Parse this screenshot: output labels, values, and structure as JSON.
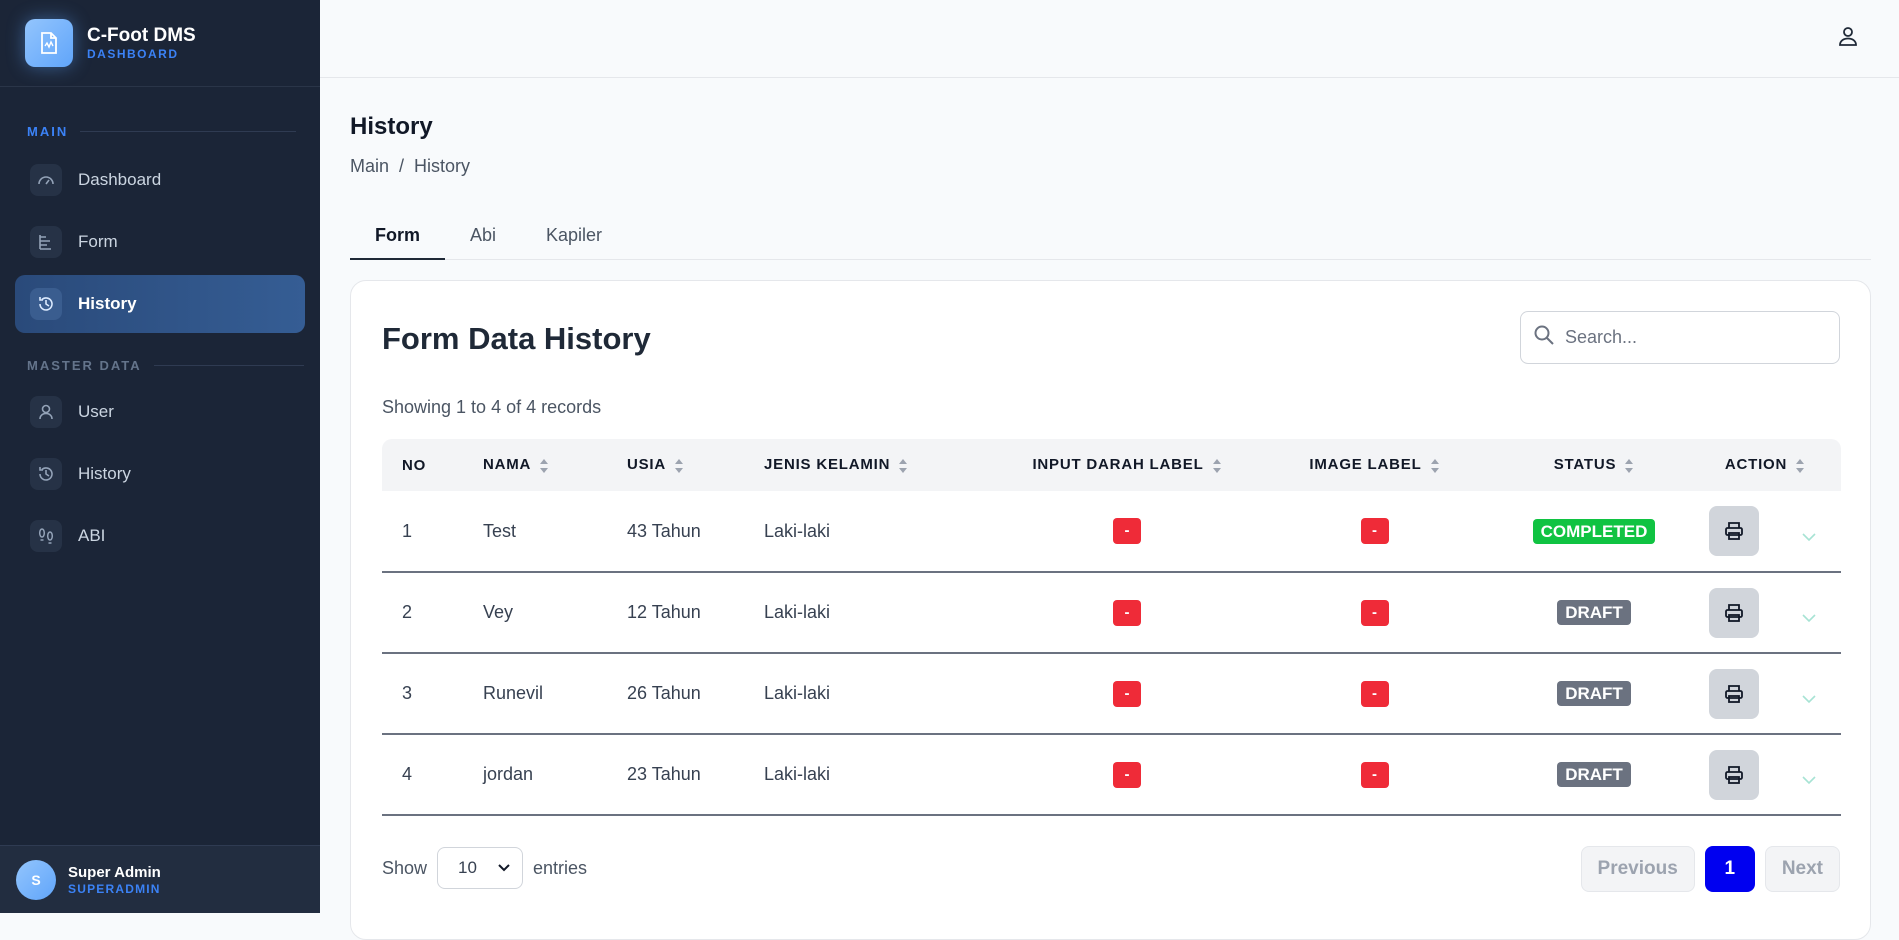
{
  "brand": {
    "name": "C-Foot DMS",
    "subtitle": "DASHBOARD"
  },
  "sidebar": {
    "section_main": "MAIN",
    "section_master": "MASTER DATA",
    "items": [
      {
        "label": "Dashboard",
        "icon": "gauge-icon"
      },
      {
        "label": "Form",
        "icon": "form-icon"
      },
      {
        "label": "History",
        "icon": "history-icon",
        "active": true
      },
      {
        "label": "User",
        "icon": "user-icon"
      },
      {
        "label": "History",
        "icon": "history-icon"
      },
      {
        "label": "ABI",
        "icon": "footprints-icon"
      }
    ]
  },
  "user": {
    "initial": "S",
    "name": "Super Admin",
    "role": "SUPERADMIN"
  },
  "page": {
    "title": "History",
    "breadcrumb": [
      "Main",
      "/",
      "History"
    ]
  },
  "tabs": [
    {
      "label": "Form",
      "active": true
    },
    {
      "label": "Abi"
    },
    {
      "label": "Kapiler"
    }
  ],
  "card": {
    "title": "Form Data History",
    "search_placeholder": "Search...",
    "records_text": "Showing 1 to 4 of 4 records"
  },
  "table": {
    "headers": [
      "NO",
      "NAMA",
      "USIA",
      "JENIS KELAMIN",
      "INPUT DARAH LABEL",
      "IMAGE LABEL",
      "STATUS",
      "ACTION"
    ],
    "rows": [
      {
        "no": "1",
        "nama": "Test",
        "usia": "43 Tahun",
        "jk": "Laki-laki",
        "darah": "-",
        "image": "-",
        "status": "COMPLETED"
      },
      {
        "no": "2",
        "nama": "Vey",
        "usia": "12 Tahun",
        "jk": "Laki-laki",
        "darah": "-",
        "image": "-",
        "status": "DRAFT"
      },
      {
        "no": "3",
        "nama": "Runevil",
        "usia": "26 Tahun",
        "jk": "Laki-laki",
        "darah": "-",
        "image": "-",
        "status": "DRAFT"
      },
      {
        "no": "4",
        "nama": "jordan",
        "usia": "23 Tahun",
        "jk": "Laki-laki",
        "darah": "-",
        "image": "-",
        "status": "DRAFT"
      }
    ]
  },
  "footer": {
    "show_label": "Show",
    "page_size": "10",
    "entries_label": "entries",
    "prev": "Previous",
    "current_page": "1",
    "next": "Next"
  },
  "colors": {
    "sidebar_bg": "#1b2537",
    "accent": "#3b82f6",
    "completed": "#10c342",
    "draft": "#6b7280",
    "badge_red": "#ef2b38",
    "page_active": "#0000f0"
  }
}
